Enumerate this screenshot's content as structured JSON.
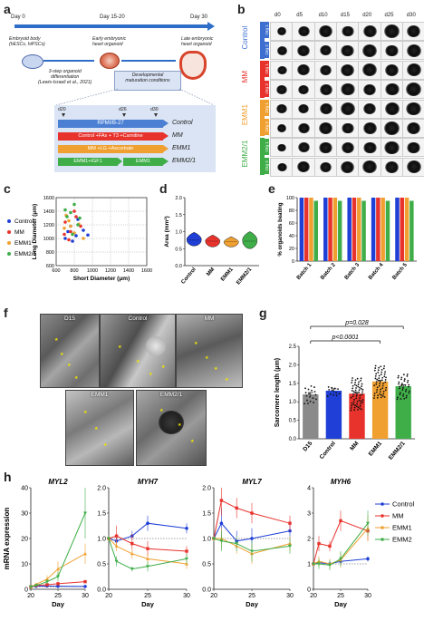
{
  "panels": {
    "a": "a",
    "b": "b",
    "c": "c",
    "d": "d",
    "e": "e",
    "f": "f",
    "g": "g",
    "h": "h"
  },
  "panel_a": {
    "timeline_labels": [
      "Day 0",
      "Day 15-20",
      "Day 30"
    ],
    "embryoid_body": "Embryoid body\n(hESCs, hiPSCs)",
    "early_organoid": "Early embryonic\nheart organoid",
    "late_organoid": "Late embryonic\nheart organoid",
    "step_label": "3-step organoid\ndifferentiation\n(Lewis-Israeli et al., 2021)",
    "maturation_label": "Developmental\nmaturation conditions",
    "day_marks": [
      "d20",
      "d26",
      "d30"
    ],
    "conditions": [
      {
        "bar": "RPMI/B-27",
        "name": "Control",
        "color": "#4a7fd4"
      },
      {
        "bar": "Control +FAs + T3 +Carnitine",
        "name": "MM",
        "color": "#e8322c"
      },
      {
        "bar": "MM +LG +Ascorbate",
        "name": "EMM1",
        "color": "#f0a030"
      },
      {
        "bar": "EMM1+IGF1",
        "bar2": "EMM1",
        "name": "EMM2/1",
        "color": "#3fae49"
      }
    ]
  },
  "panel_b": {
    "columns": [
      "d0",
      "d5",
      "d10",
      "d15",
      "d20",
      "d25",
      "d30"
    ],
    "groups": [
      {
        "name": "Control",
        "color": "#3d6fd0",
        "rows": [
          "Org 1",
          "Org 2"
        ]
      },
      {
        "name": "MM",
        "color": "#e8322c",
        "rows": [
          "Org 1",
          "Org 2"
        ]
      },
      {
        "name": "EMM1",
        "color": "#f0a030",
        "rows": [
          "Org 1",
          "Org 2"
        ]
      },
      {
        "name": "EMM2/1",
        "color": "#3fae49",
        "rows": [
          "Org 1",
          "Org 2"
        ]
      }
    ]
  },
  "panel_c": {
    "chart_data": {
      "type": "scatter",
      "xlabel": "Short Diameter (μm)",
      "ylabel": "Long Diameter (μm)",
      "xlim": [
        600,
        1600
      ],
      "ylim": [
        600,
        1600
      ],
      "xticks": [
        600,
        800,
        1000,
        1200,
        1400,
        1600
      ],
      "yticks": [
        600,
        800,
        1000,
        1200,
        1400,
        1600
      ],
      "legend": [
        "Control",
        "MM",
        "EMM1",
        "EMM2/1"
      ],
      "colors": [
        "#1f3fd6",
        "#e8322c",
        "#f0a030",
        "#3fae49"
      ],
      "series": [
        {
          "name": "Control",
          "points": [
            [
              760,
              1180
            ],
            [
              820,
              1040
            ],
            [
              900,
              1120
            ],
            [
              700,
              1000
            ],
            [
              840,
              1280
            ],
            [
              780,
              960
            ],
            [
              950,
              1050
            ],
            [
              730,
              1100
            ]
          ]
        },
        {
          "name": "MM",
          "points": [
            [
              700,
              1240
            ],
            [
              760,
              1100
            ],
            [
              820,
              1320
            ],
            [
              690,
              1060
            ],
            [
              870,
              1180
            ],
            [
              740,
              980
            ],
            [
              800,
              1400
            ]
          ]
        },
        {
          "name": "EMM1",
          "points": [
            [
              690,
              1150
            ],
            [
              740,
              1260
            ],
            [
              800,
              1080
            ],
            [
              850,
              1210
            ],
            [
              710,
              1340
            ],
            [
              900,
              1000
            ],
            [
              760,
              1180
            ]
          ]
        },
        {
          "name": "EMM2/1",
          "points": [
            [
              720,
              1320
            ],
            [
              800,
              1500
            ],
            [
              760,
              1380
            ],
            [
              840,
              1200
            ],
            [
              700,
              1420
            ],
            [
              780,
              1060
            ],
            [
              860,
              1300
            ]
          ]
        }
      ]
    }
  },
  "panel_d": {
    "chart_data": {
      "type": "violin",
      "ylabel": "Area (mm²)",
      "ylim": [
        0,
        2.0
      ],
      "yticks": [
        "0.0",
        "0.5",
        "1.0",
        "1.5",
        "2.0"
      ],
      "categories": [
        "Control",
        "MM",
        "EMM1",
        "EMM2/1"
      ],
      "colors": [
        "#1f3fd6",
        "#e8322c",
        "#f0a030",
        "#3fae49"
      ],
      "values": [
        {
          "min": 0.58,
          "median": 0.75,
          "max": 0.98
        },
        {
          "min": 0.55,
          "median": 0.72,
          "max": 0.9
        },
        {
          "min": 0.55,
          "median": 0.7,
          "max": 0.85
        },
        {
          "min": 0.5,
          "median": 0.72,
          "max": 1.0
        }
      ]
    }
  },
  "panel_e": {
    "chart_data": {
      "type": "bar",
      "ylabel": "% organoids beating",
      "ylim": [
        0,
        100
      ],
      "yticks": [
        "0",
        "20",
        "40",
        "60",
        "80",
        "100"
      ],
      "categories": [
        "Batch 1",
        "Batch 2",
        "Batch 3",
        "Batch 4",
        "Batch 5"
      ],
      "colors": [
        "#1f3fd6",
        "#e8322c",
        "#f0a030",
        "#3fae49"
      ],
      "series": [
        {
          "name": "Control",
          "values": [
            100,
            100,
            100,
            100,
            100
          ]
        },
        {
          "name": "MM",
          "values": [
            100,
            100,
            100,
            100,
            100
          ]
        },
        {
          "name": "EMM1",
          "values": [
            100,
            100,
            100,
            100,
            100
          ]
        },
        {
          "name": "EMM2/1",
          "values": [
            95,
            95,
            95,
            95,
            95
          ]
        }
      ]
    }
  },
  "panel_f": {
    "images": [
      "D15",
      "Control",
      "MM",
      "EMM1",
      "EMM2/1"
    ]
  },
  "panel_g": {
    "chart_data": {
      "type": "bar",
      "ylabel": "Sarcomere length (μm)",
      "ylim": [
        0,
        2.5
      ],
      "yticks": [
        "0.0",
        "0.5",
        "1.0",
        "1.5",
        "2.0",
        "2.5"
      ],
      "categories": [
        "D15",
        "Control",
        "MM",
        "EMM1",
        "EMM2/1"
      ],
      "colors": [
        "#8a8a8a",
        "#1f3fd6",
        "#e8322c",
        "#f0a030",
        "#3fae49"
      ],
      "values": [
        1.2,
        1.3,
        1.22,
        1.55,
        1.42
      ],
      "errors": [
        0.05,
        0.05,
        0.04,
        0.03,
        0.04
      ],
      "annotations": [
        "p=0.028",
        "p<0.0001"
      ]
    }
  },
  "panel_h": {
    "ylabel": "mRNA expression",
    "xlabel": "Day",
    "legend": [
      "Control",
      "MM",
      "EMM1",
      "EMM2"
    ],
    "colors": [
      "#1f3fd6",
      "#e8322c",
      "#f0a030",
      "#3fae49"
    ],
    "chart_data": [
      {
        "type": "line",
        "title": "MYL2",
        "x": [
          20,
          21,
          23,
          25,
          30
        ],
        "xticks": [
          "20",
          "25",
          "30"
        ],
        "ylim": [
          0,
          40
        ],
        "yticks": [
          "0",
          "10",
          "20",
          "30",
          "40"
        ],
        "series": [
          {
            "name": "Control",
            "values": [
              1,
              1.2,
              1.3,
              1.2,
              1.1
            ],
            "err": [
              0.2,
              0.2,
              0.2,
              0.2,
              0.2
            ]
          },
          {
            "name": "MM",
            "values": [
              1,
              1.5,
              1.8,
              2.2,
              3
            ],
            "err": [
              0.3,
              0.3,
              0.3,
              0.5,
              0.6
            ]
          },
          {
            "name": "EMM1",
            "values": [
              1,
              2,
              4,
              8,
              14
            ],
            "err": [
              0.3,
              0.6,
              1.5,
              3,
              4
            ]
          },
          {
            "name": "EMM2",
            "values": [
              1,
              1.5,
              3,
              5,
              30
            ],
            "err": [
              0.3,
              0.5,
              1,
              2,
              10
            ]
          }
        ]
      },
      {
        "type": "line",
        "title": "MYH7",
        "x": [
          20,
          21,
          23,
          25,
          30
        ],
        "xticks": [
          "20",
          "25",
          "30"
        ],
        "ylim": [
          0,
          2
        ],
        "yticks": [
          "0.0",
          "0.5",
          "1.0",
          "1.5",
          "2.0"
        ],
        "series": [
          {
            "name": "Control",
            "values": [
              1,
              0.95,
              1.05,
              1.3,
              1.2
            ],
            "err": [
              0.05,
              0.1,
              0.1,
              0.15,
              0.1
            ]
          },
          {
            "name": "MM",
            "values": [
              1,
              1.05,
              0.9,
              0.8,
              0.75
            ],
            "err": [
              0.05,
              0.2,
              0.2,
              0.15,
              0.1
            ]
          },
          {
            "name": "EMM1",
            "values": [
              1,
              0.85,
              0.7,
              0.6,
              0.5
            ],
            "err": [
              0.05,
              0.1,
              0.1,
              0.1,
              0.1
            ]
          },
          {
            "name": "EMM2",
            "values": [
              1,
              0.55,
              0.4,
              0.45,
              0.6
            ],
            "err": [
              0.05,
              0.1,
              0.05,
              0.1,
              0.1
            ]
          }
        ]
      },
      {
        "type": "line",
        "title": "MYL7",
        "x": [
          20,
          21,
          23,
          25,
          30
        ],
        "xticks": [
          "20",
          "25",
          "30"
        ],
        "ylim": [
          0,
          2
        ],
        "yticks": [
          "0.0",
          "0.5",
          "1.0",
          "1.5",
          "2.0"
        ],
        "series": [
          {
            "name": "Control",
            "values": [
              1,
              1.3,
              0.95,
              1.0,
              1.15
            ],
            "err": [
              0.05,
              0.3,
              0.2,
              0.2,
              0.2
            ]
          },
          {
            "name": "MM",
            "values": [
              1,
              1.75,
              1.6,
              1.5,
              1.3
            ],
            "err": [
              0.05,
              0.3,
              0.2,
              0.2,
              0.15
            ]
          },
          {
            "name": "EMM1",
            "values": [
              1,
              1.0,
              0.85,
              0.7,
              0.9
            ],
            "err": [
              0.05,
              0.2,
              0.15,
              0.2,
              0.15
            ]
          },
          {
            "name": "EMM2",
            "values": [
              1,
              0.95,
              0.9,
              0.75,
              0.85
            ],
            "err": [
              0.05,
              0.2,
              0.15,
              0.2,
              0.15
            ]
          }
        ]
      },
      {
        "type": "line",
        "title": "MYH6",
        "x": [
          20,
          21,
          23,
          25,
          30
        ],
        "xticks": [
          "20",
          "25",
          "30"
        ],
        "ylim": [
          0,
          4
        ],
        "yticks": [
          "0",
          "1",
          "2",
          "3",
          "4"
        ],
        "series": [
          {
            "name": "Control",
            "values": [
              1,
              1.05,
              1.0,
              1.1,
              1.2
            ],
            "err": [
              0.05,
              0.1,
              0.1,
              0.15,
              0.1
            ]
          },
          {
            "name": "MM",
            "values": [
              1,
              1.8,
              1.7,
              2.7,
              2.3
            ],
            "err": [
              0.05,
              0.3,
              0.2,
              0.4,
              0.4
            ]
          },
          {
            "name": "EMM1",
            "values": [
              1,
              1.1,
              1.0,
              1.15,
              2.4
            ],
            "err": [
              0.05,
              0.2,
              0.2,
              0.3,
              0.5
            ]
          },
          {
            "name": "EMM2",
            "values": [
              1,
              1.0,
              0.95,
              1.2,
              2.6
            ],
            "err": [
              0.05,
              0.2,
              0.2,
              0.3,
              0.5
            ]
          }
        ]
      }
    ]
  }
}
